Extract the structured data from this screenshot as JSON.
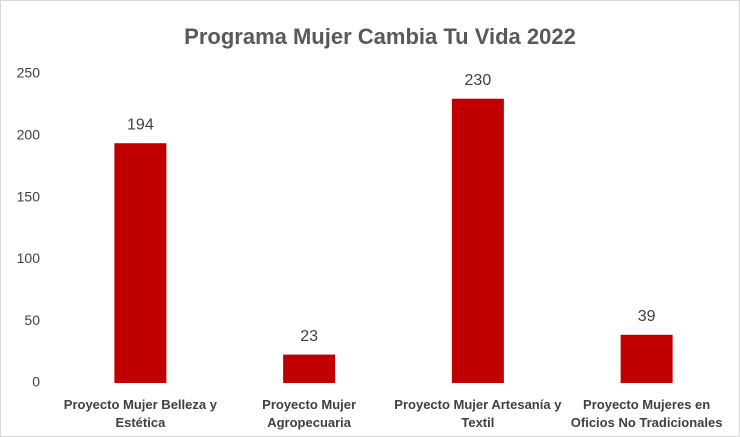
{
  "chart_data": {
    "type": "bar",
    "title": "Programa Mujer Cambia Tu Vida 2022",
    "categories": [
      "Proyecto Mujer Belleza y Estética",
      "Proyecto Mujer Agropecuaria",
      "Proyecto Mujer Artesanía y Textil",
      "Proyecto Mujeres en Oficios No Tradicionales"
    ],
    "values": [
      194,
      23,
      230,
      39
    ],
    "color": "#c00000",
    "ylim": [
      0,
      250
    ],
    "yticks": [
      0,
      50,
      100,
      150,
      200,
      250
    ],
    "grid": false
  }
}
